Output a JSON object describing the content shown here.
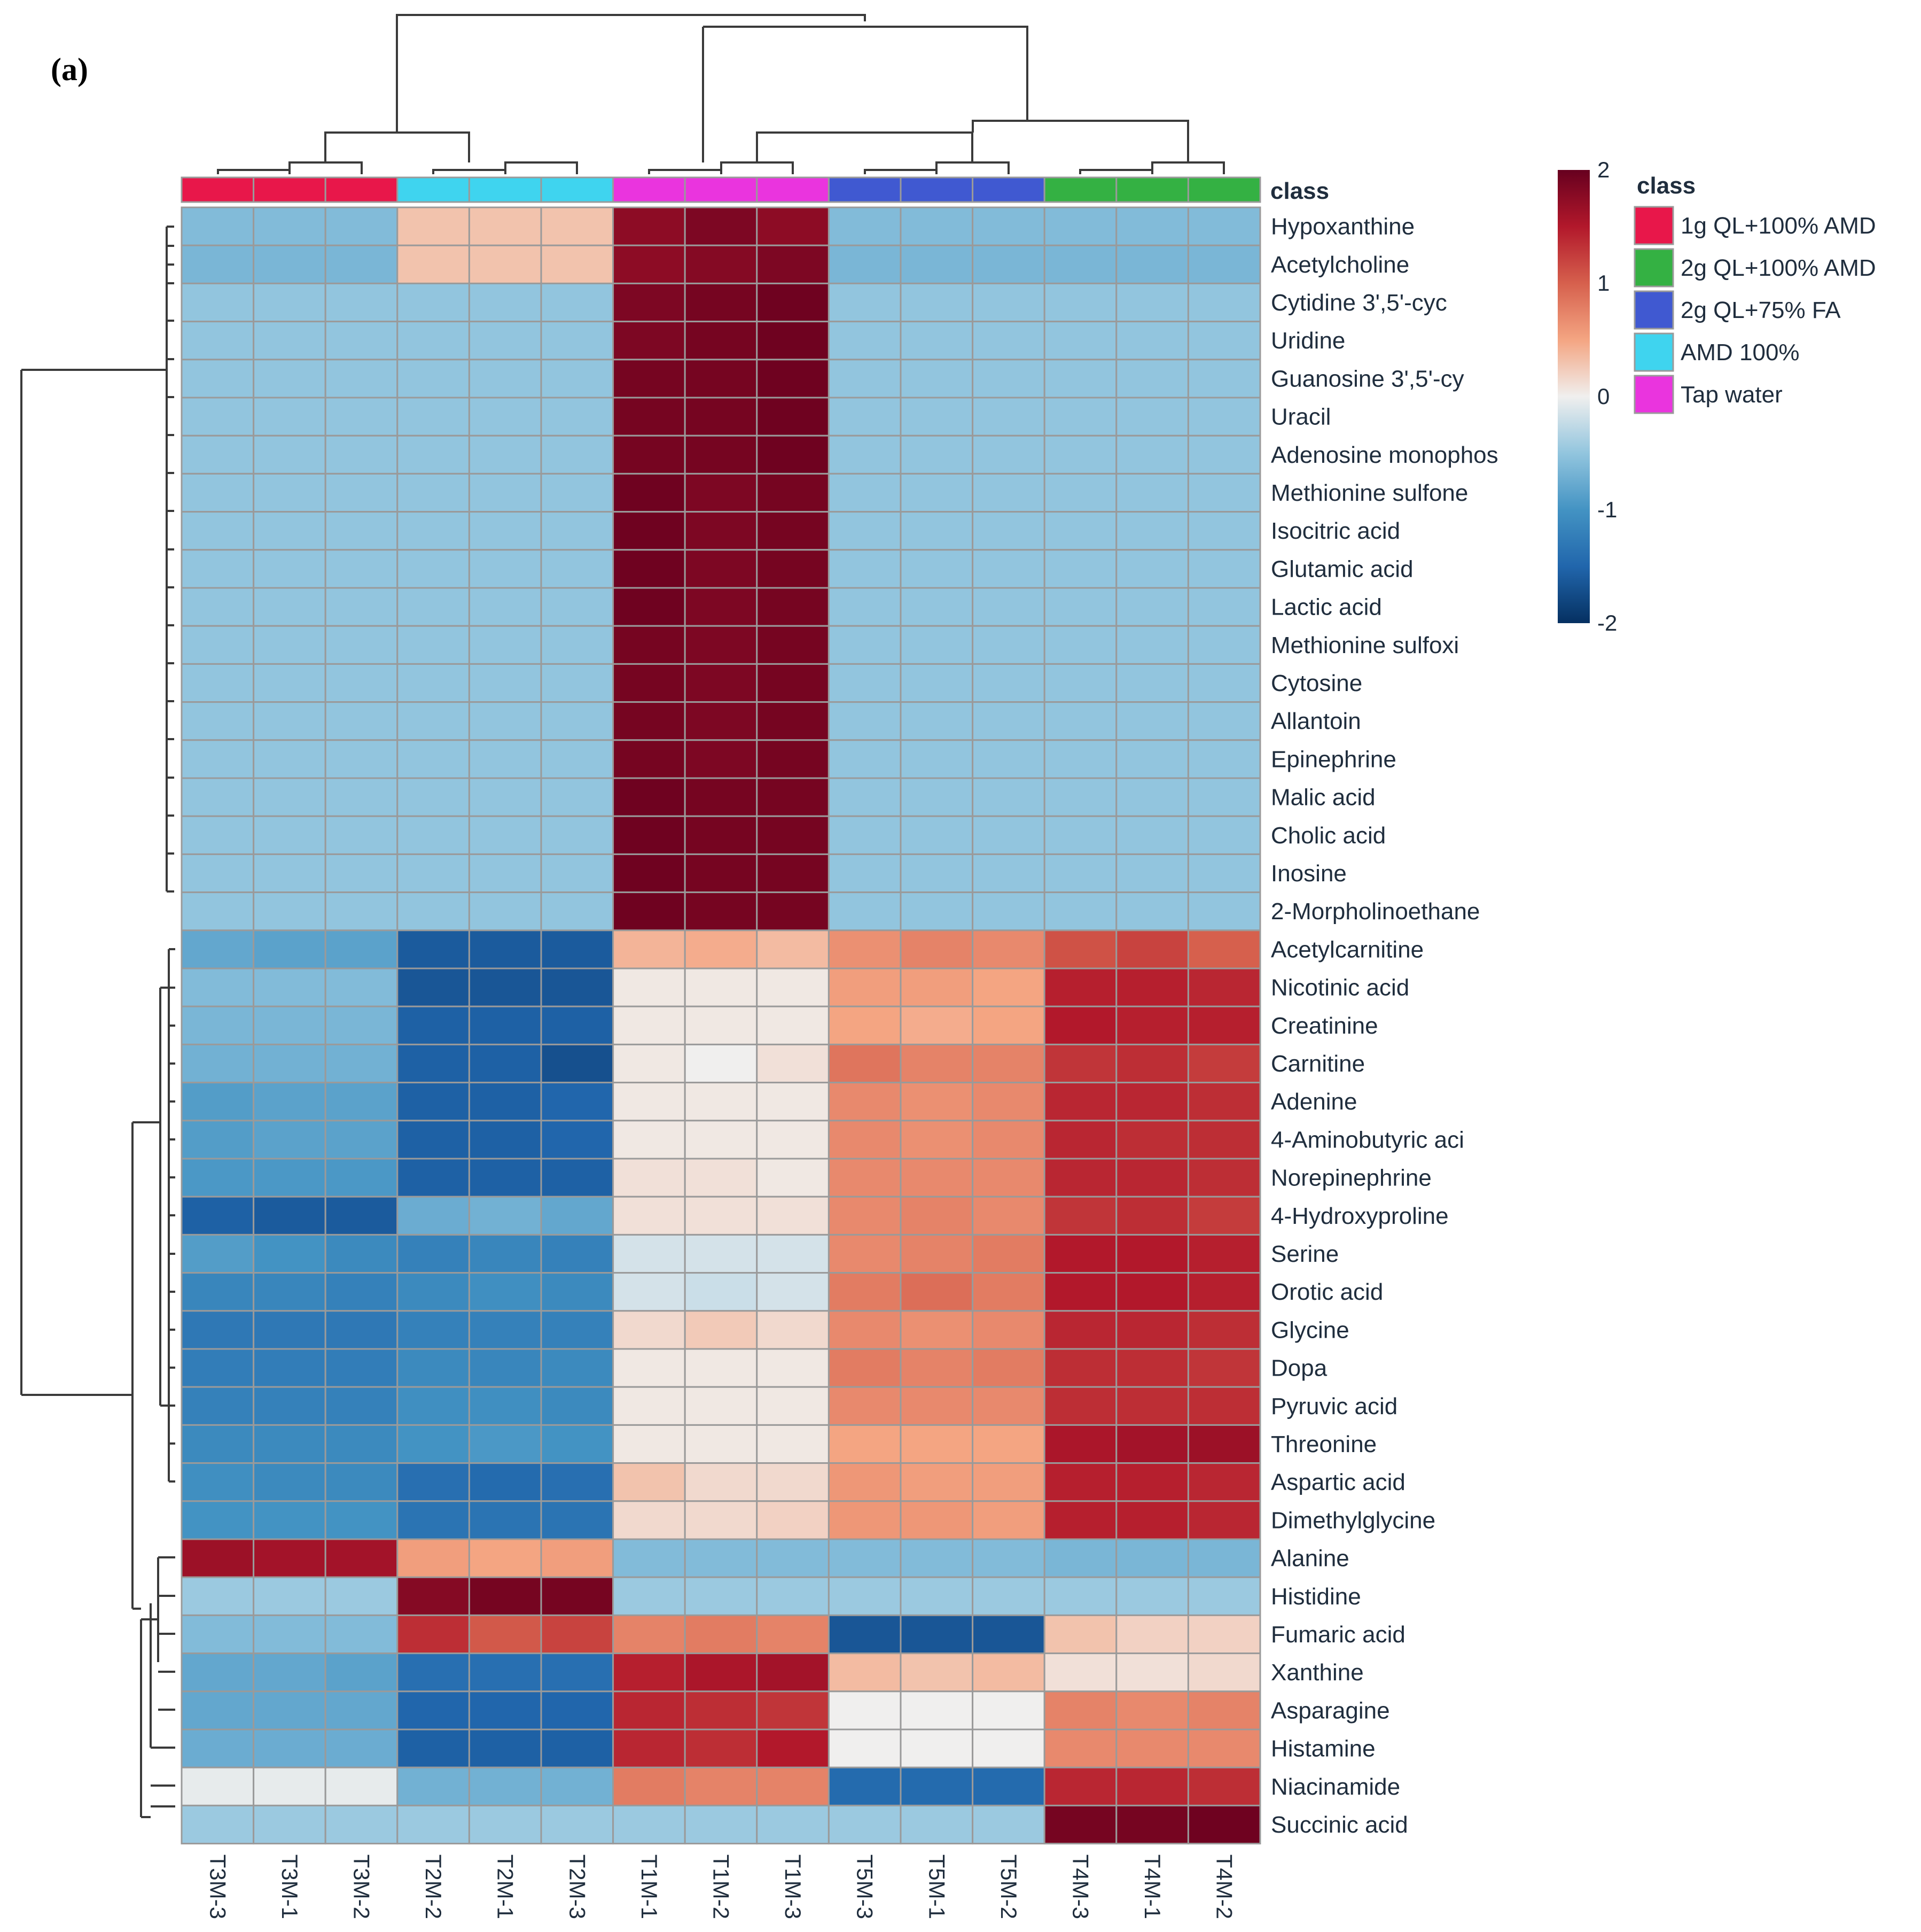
{
  "panel_label": "(a)",
  "chart_data": {
    "type": "heatmap",
    "title": "",
    "class_annotation_label": "class",
    "legend_title": "class",
    "groups": [
      {
        "name": "1g QL+100% AMD",
        "color": "#e8174a"
      },
      {
        "name": "2g QL+100% AMD",
        "color": "#34b143"
      },
      {
        "name": "2g QL+75% FA",
        "color": "#4059d1"
      },
      {
        "name": "AMD 100%",
        "color": "#3fd4ef"
      },
      {
        "name": "Tap water",
        "color": "#ea34de"
      }
    ],
    "colorbar": {
      "min": -2,
      "max": 2,
      "ticks": [
        2,
        1,
        0,
        -1,
        -2
      ],
      "low_color": "#053061",
      "mid_color": "#f0efee",
      "high_color": "#67001f"
    },
    "columns": [
      "T3M-3",
      "T3M-1",
      "T3M-2",
      "T2M-2",
      "T2M-1",
      "T2M-3",
      "T1M-1",
      "T1M-2",
      "T1M-3",
      "T5M-3",
      "T5M-1",
      "T5M-2",
      "T4M-3",
      "T4M-1",
      "T4M-2"
    ],
    "column_classes": [
      "1g QL+100% AMD",
      "1g QL+100% AMD",
      "1g QL+100% AMD",
      "AMD 100%",
      "AMD 100%",
      "AMD 100%",
      "Tap water",
      "Tap water",
      "Tap water",
      "2g QL+75% FA",
      "2g QL+75% FA",
      "2g QL+75% FA",
      "2g QL+100% AMD",
      "2g QL+100% AMD",
      "2g QL+100% AMD"
    ],
    "rows": [
      "Hypoxanthine",
      "Acetylcholine",
      "Cytidine 3',5'-cyc",
      "Uridine",
      "Guanosine 3',5'-cy",
      "Uracil",
      "Adenosine monophos",
      "Methionine sulfone",
      "Isocitric acid",
      "Glutamic acid",
      "Lactic acid",
      "Methionine sulfoxi",
      "Cytosine",
      "Allantoin",
      "Epinephrine",
      "Malic acid",
      "Cholic acid",
      "Inosine",
      "2-Morpholinoethane",
      "Acetylcarnitine",
      "Nicotinic acid",
      "Creatinine",
      "Carnitine",
      "Adenine",
      "4-Aminobutyric aci",
      "Norepinephrine",
      "4-Hydroxyproline",
      "Serine",
      "Orotic acid",
      "Glycine",
      "Dopa",
      "Pyruvic acid",
      "Threonine",
      "Aspartic acid",
      "Dimethylglycine",
      "Alanine",
      "Histidine",
      "Fumaric acid",
      "Xanthine",
      "Asparagine",
      "Histamine",
      "Niacinamide",
      "Succinic acid"
    ],
    "values": [
      [
        -0.6,
        -0.6,
        -0.6,
        0.3,
        0.3,
        0.3,
        1.75,
        1.85,
        1.75,
        -0.6,
        -0.6,
        -0.6,
        -0.6,
        -0.6,
        -0.6
      ],
      [
        -0.65,
        -0.65,
        -0.65,
        0.3,
        0.3,
        0.3,
        1.75,
        1.8,
        1.85,
        -0.65,
        -0.65,
        -0.65,
        -0.65,
        -0.65,
        -0.65
      ],
      [
        -0.5,
        -0.5,
        -0.5,
        -0.5,
        -0.5,
        -0.5,
        1.85,
        1.9,
        1.95,
        -0.5,
        -0.5,
        -0.5,
        -0.5,
        -0.5,
        -0.5
      ],
      [
        -0.5,
        -0.5,
        -0.5,
        -0.5,
        -0.5,
        -0.5,
        1.85,
        1.9,
        1.95,
        -0.5,
        -0.5,
        -0.5,
        -0.5,
        -0.5,
        -0.5
      ],
      [
        -0.5,
        -0.5,
        -0.5,
        -0.5,
        -0.5,
        -0.5,
        1.9,
        1.9,
        1.95,
        -0.5,
        -0.5,
        -0.5,
        -0.5,
        -0.5,
        -0.5
      ],
      [
        -0.5,
        -0.5,
        -0.5,
        -0.5,
        -0.5,
        -0.5,
        1.9,
        1.9,
        1.95,
        -0.5,
        -0.5,
        -0.5,
        -0.5,
        -0.5,
        -0.5
      ],
      [
        -0.5,
        -0.5,
        -0.5,
        -0.5,
        -0.5,
        -0.5,
        1.9,
        1.9,
        1.95,
        -0.5,
        -0.5,
        -0.5,
        -0.5,
        -0.5,
        -0.5
      ],
      [
        -0.5,
        -0.5,
        -0.5,
        -0.5,
        -0.5,
        -0.5,
        1.95,
        1.85,
        1.9,
        -0.5,
        -0.5,
        -0.5,
        -0.5,
        -0.5,
        -0.5
      ],
      [
        -0.5,
        -0.5,
        -0.5,
        -0.5,
        -0.5,
        -0.5,
        1.95,
        1.85,
        1.9,
        -0.5,
        -0.5,
        -0.5,
        -0.5,
        -0.5,
        -0.5
      ],
      [
        -0.5,
        -0.5,
        -0.5,
        -0.5,
        -0.5,
        -0.5,
        1.95,
        1.85,
        1.9,
        -0.5,
        -0.5,
        -0.5,
        -0.5,
        -0.5,
        -0.5
      ],
      [
        -0.5,
        -0.5,
        -0.5,
        -0.5,
        -0.5,
        -0.5,
        1.95,
        1.85,
        1.9,
        -0.5,
        -0.5,
        -0.5,
        -0.5,
        -0.5,
        -0.5
      ],
      [
        -0.5,
        -0.5,
        -0.5,
        -0.5,
        -0.5,
        -0.5,
        1.9,
        1.85,
        1.9,
        -0.5,
        -0.5,
        -0.5,
        -0.5,
        -0.5,
        -0.5
      ],
      [
        -0.5,
        -0.5,
        -0.5,
        -0.5,
        -0.5,
        -0.5,
        1.9,
        1.85,
        1.9,
        -0.5,
        -0.5,
        -0.5,
        -0.5,
        -0.5,
        -0.5
      ],
      [
        -0.5,
        -0.5,
        -0.5,
        -0.5,
        -0.5,
        -0.5,
        1.9,
        1.85,
        1.9,
        -0.5,
        -0.5,
        -0.5,
        -0.5,
        -0.5,
        -0.5
      ],
      [
        -0.5,
        -0.5,
        -0.5,
        -0.5,
        -0.5,
        -0.5,
        1.9,
        1.85,
        1.9,
        -0.5,
        -0.5,
        -0.5,
        -0.5,
        -0.5,
        -0.5
      ],
      [
        -0.5,
        -0.5,
        -0.5,
        -0.5,
        -0.5,
        -0.5,
        1.95,
        1.9,
        1.9,
        -0.5,
        -0.5,
        -0.5,
        -0.5,
        -0.5,
        -0.5
      ],
      [
        -0.5,
        -0.5,
        -0.5,
        -0.5,
        -0.5,
        -0.5,
        1.95,
        1.9,
        1.9,
        -0.5,
        -0.5,
        -0.5,
        -0.5,
        -0.5,
        -0.5
      ],
      [
        -0.5,
        -0.5,
        -0.5,
        -0.5,
        -0.5,
        -0.5,
        1.95,
        1.9,
        1.9,
        -0.5,
        -0.5,
        -0.5,
        -0.5,
        -0.5,
        -0.5
      ],
      [
        -0.5,
        -0.5,
        -0.5,
        -0.5,
        -0.5,
        -0.5,
        1.95,
        1.9,
        1.9,
        -0.5,
        -0.5,
        -0.5,
        -0.5,
        -0.5,
        -0.5
      ],
      [
        -0.8,
        -0.85,
        -0.85,
        -1.6,
        -1.6,
        -1.6,
        0.4,
        0.45,
        0.35,
        0.65,
        0.75,
        0.7,
        1.1,
        1.2,
        1.0
      ],
      [
        -0.6,
        -0.6,
        -0.6,
        -1.65,
        -1.65,
        -1.65,
        0.05,
        0.05,
        0.05,
        0.55,
        0.55,
        0.5,
        1.45,
        1.45,
        1.4
      ],
      [
        -0.65,
        -0.65,
        -0.65,
        -1.55,
        -1.55,
        -1.55,
        0.05,
        0.05,
        0.05,
        0.5,
        0.45,
        0.5,
        1.5,
        1.45,
        1.45
      ],
      [
        -0.7,
        -0.7,
        -0.7,
        -1.55,
        -1.55,
        -1.7,
        0.05,
        0.0,
        0.1,
        0.85,
        0.75,
        0.75,
        1.3,
        1.35,
        1.25
      ],
      [
        -0.9,
        -0.85,
        -0.85,
        -1.55,
        -1.55,
        -1.5,
        0.05,
        0.05,
        0.05,
        0.7,
        0.65,
        0.7,
        1.4,
        1.4,
        1.35
      ],
      [
        -0.9,
        -0.85,
        -0.85,
        -1.55,
        -1.55,
        -1.5,
        0.05,
        0.05,
        0.05,
        0.7,
        0.65,
        0.7,
        1.4,
        1.35,
        1.35
      ],
      [
        -0.95,
        -0.95,
        -0.95,
        -1.55,
        -1.55,
        -1.55,
        0.1,
        0.1,
        0.05,
        0.7,
        0.7,
        0.7,
        1.4,
        1.4,
        1.35
      ],
      [
        -1.55,
        -1.6,
        -1.6,
        -0.75,
        -0.7,
        -0.8,
        0.1,
        0.1,
        0.1,
        0.7,
        0.75,
        0.7,
        1.3,
        1.35,
        1.25
      ],
      [
        -0.9,
        -1.0,
        -1.1,
        -1.2,
        -1.15,
        -1.2,
        -0.15,
        -0.15,
        -0.15,
        0.7,
        0.75,
        0.8,
        1.5,
        1.5,
        1.45
      ],
      [
        -1.15,
        -1.15,
        -1.2,
        -1.1,
        -1.05,
        -1.1,
        -0.15,
        -0.2,
        -0.15,
        0.8,
        0.9,
        0.8,
        1.5,
        1.5,
        1.45
      ],
      [
        -1.3,
        -1.3,
        -1.3,
        -1.2,
        -1.2,
        -1.2,
        0.15,
        0.25,
        0.15,
        0.7,
        0.65,
        0.7,
        1.4,
        1.4,
        1.35
      ],
      [
        -1.25,
        -1.25,
        -1.25,
        -1.1,
        -1.15,
        -1.1,
        0.05,
        0.05,
        0.05,
        0.8,
        0.75,
        0.8,
        1.35,
        1.35,
        1.3
      ],
      [
        -1.2,
        -1.2,
        -1.2,
        -1.05,
        -1.05,
        -1.1,
        0.05,
        0.05,
        0.05,
        0.7,
        0.7,
        0.7,
        1.35,
        1.35,
        1.35
      ],
      [
        -1.1,
        -1.1,
        -1.1,
        -1.0,
        -0.95,
        -1.0,
        0.05,
        0.05,
        0.05,
        0.5,
        0.5,
        0.5,
        1.55,
        1.6,
        1.65
      ],
      [
        -1.05,
        -1.1,
        -1.1,
        -1.4,
        -1.45,
        -1.4,
        0.3,
        0.15,
        0.15,
        0.6,
        0.55,
        0.55,
        1.45,
        1.45,
        1.4
      ],
      [
        -1.0,
        -1.0,
        -1.0,
        -1.35,
        -1.35,
        -1.35,
        0.15,
        0.15,
        0.2,
        0.6,
        0.6,
        0.55,
        1.45,
        1.45,
        1.4
      ],
      [
        1.65,
        1.6,
        1.6,
        0.55,
        0.5,
        0.55,
        -0.6,
        -0.6,
        -0.6,
        -0.6,
        -0.6,
        -0.6,
        -0.65,
        -0.65,
        -0.65
      ],
      [
        -0.45,
        -0.45,
        -0.45,
        1.8,
        1.9,
        1.9,
        -0.45,
        -0.45,
        -0.45,
        -0.45,
        -0.45,
        -0.45,
        -0.45,
        -0.45,
        -0.45
      ],
      [
        -0.6,
        -0.6,
        -0.6,
        1.35,
        1.05,
        1.2,
        0.75,
        0.8,
        0.75,
        -1.65,
        -1.65,
        -1.65,
        0.3,
        0.2,
        0.2
      ],
      [
        -0.8,
        -0.8,
        -0.85,
        -1.4,
        -1.4,
        -1.4,
        1.45,
        1.55,
        1.6,
        0.35,
        0.3,
        0.35,
        0.1,
        0.1,
        0.15
      ],
      [
        -0.8,
        -0.8,
        -0.8,
        -1.5,
        -1.5,
        -1.5,
        1.4,
        1.35,
        1.3,
        0.0,
        0.0,
        0.0,
        0.75,
        0.7,
        0.75
      ],
      [
        -0.75,
        -0.75,
        -0.75,
        -1.55,
        -1.55,
        -1.55,
        1.4,
        1.35,
        1.5,
        0.0,
        0.0,
        0.0,
        0.7,
        0.7,
        0.7
      ],
      [
        -0.05,
        -0.05,
        -0.05,
        -0.7,
        -0.7,
        -0.7,
        0.8,
        0.75,
        0.75,
        -1.45,
        -1.45,
        -1.45,
        1.4,
        1.4,
        1.35
      ],
      [
        -0.45,
        -0.45,
        -0.45,
        -0.45,
        -0.45,
        -0.45,
        -0.45,
        -0.45,
        -0.45,
        -0.45,
        -0.45,
        -0.45,
        1.9,
        1.9,
        1.95
      ]
    ]
  }
}
